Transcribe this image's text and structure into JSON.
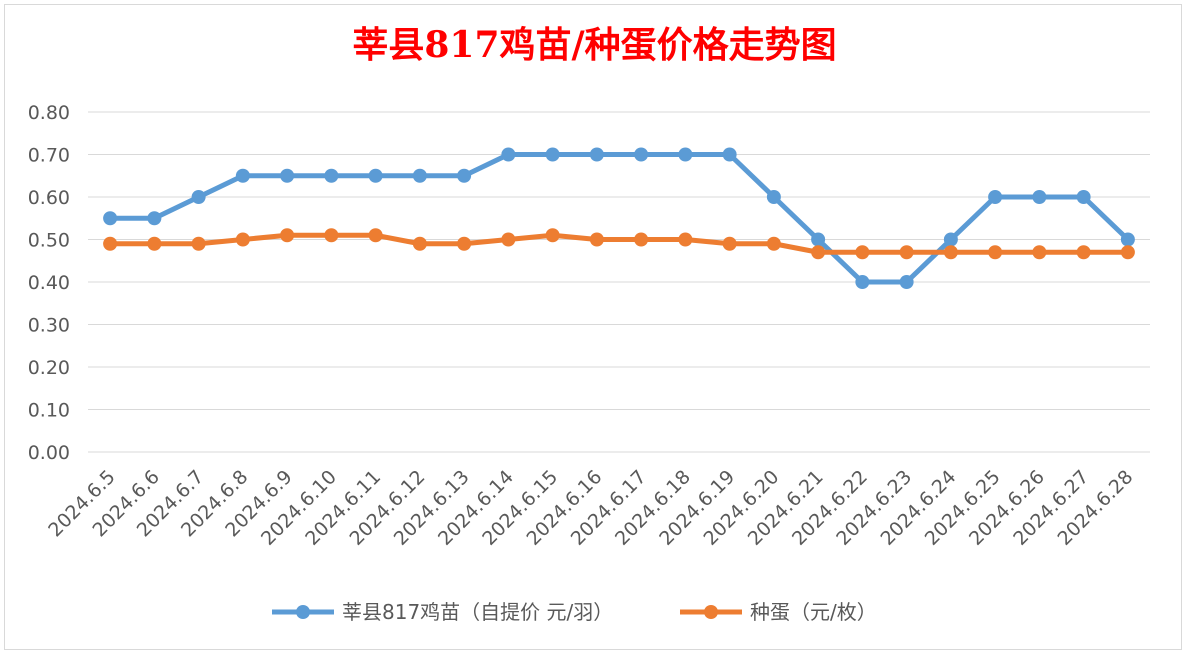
{
  "chart_data": {
    "type": "line",
    "title": "莘县817鸡苗/种蛋价格走势图",
    "categories": [
      "2024.6.5",
      "2024.6.6",
      "2024.6.7",
      "2024.6.8",
      "2024.6.9",
      "2024.6.10",
      "2024.6.11",
      "2024.6.12",
      "2024.6.13",
      "2024.6.14",
      "2024.6.15",
      "2024.6.16",
      "2024.6.17",
      "2024.6.18",
      "2024.6.19",
      "2024.6.20",
      "2024.6.21",
      "2024.6.22",
      "2024.6.23",
      "2024.6.24",
      "2024.6.25",
      "2024.6.26",
      "2024.6.27",
      "2024.6.28"
    ],
    "series": [
      {
        "name": "莘县817鸡苗（自提价 元/羽）",
        "color": "#5b9bd5",
        "values": [
          0.55,
          0.55,
          0.6,
          0.65,
          0.65,
          0.65,
          0.65,
          0.65,
          0.65,
          0.7,
          0.7,
          0.7,
          0.7,
          0.7,
          0.7,
          0.6,
          0.5,
          0.4,
          0.4,
          0.5,
          0.6,
          0.6,
          0.6,
          0.5
        ]
      },
      {
        "name": "种蛋（元/枚）",
        "color": "#ed7d31",
        "values": [
          0.49,
          0.49,
          0.49,
          0.5,
          0.51,
          0.51,
          0.51,
          0.49,
          0.49,
          0.5,
          0.51,
          0.5,
          0.5,
          0.5,
          0.49,
          0.49,
          0.47,
          0.47,
          0.47,
          0.47,
          0.47,
          0.47,
          0.47,
          0.47
        ]
      }
    ],
    "ylim": [
      0,
      0.8
    ],
    "yticks": [
      "0.00",
      "0.10",
      "0.20",
      "0.30",
      "0.40",
      "0.50",
      "0.60",
      "0.70",
      "0.80"
    ],
    "grid": true,
    "legend": "bottom"
  }
}
